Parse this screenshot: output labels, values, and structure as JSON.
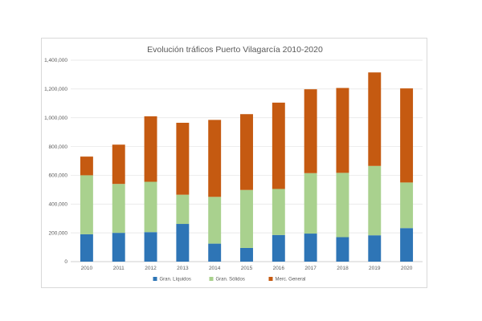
{
  "chart_data": {
    "type": "bar",
    "stacked": true,
    "title": "Evolución tráficos Puerto Vilagarcía 2010-2020",
    "xlabel": "",
    "ylabel": "",
    "categories": [
      "2010",
      "2011",
      "2012",
      "2013",
      "2014",
      "2015",
      "2016",
      "2017",
      "2018",
      "2019",
      "2020"
    ],
    "series": [
      {
        "name": "Gran. Líquidos",
        "color": "#2e75b6",
        "values": [
          190000,
          200000,
          205000,
          262000,
          125000,
          95000,
          185000,
          195000,
          170000,
          183000,
          233000
        ]
      },
      {
        "name": "Gran. Sólidos",
        "color": "#a9d18e",
        "values": [
          410000,
          340000,
          350000,
          203000,
          325000,
          403000,
          320000,
          420000,
          447000,
          482000,
          317000
        ]
      },
      {
        "name": "Merc. General",
        "color": "#c55a11",
        "values": [
          130000,
          273000,
          455000,
          500000,
          535000,
          527000,
          600000,
          583000,
          590000,
          650000,
          654000
        ]
      }
    ],
    "ylim": [
      0,
      1400000
    ],
    "yticks": [
      "0",
      "200,000",
      "400,000",
      "600,000",
      "800,000",
      "1,000,000",
      "1,200,000",
      "1,400,000"
    ],
    "grid": true,
    "legend_position": "bottom"
  }
}
